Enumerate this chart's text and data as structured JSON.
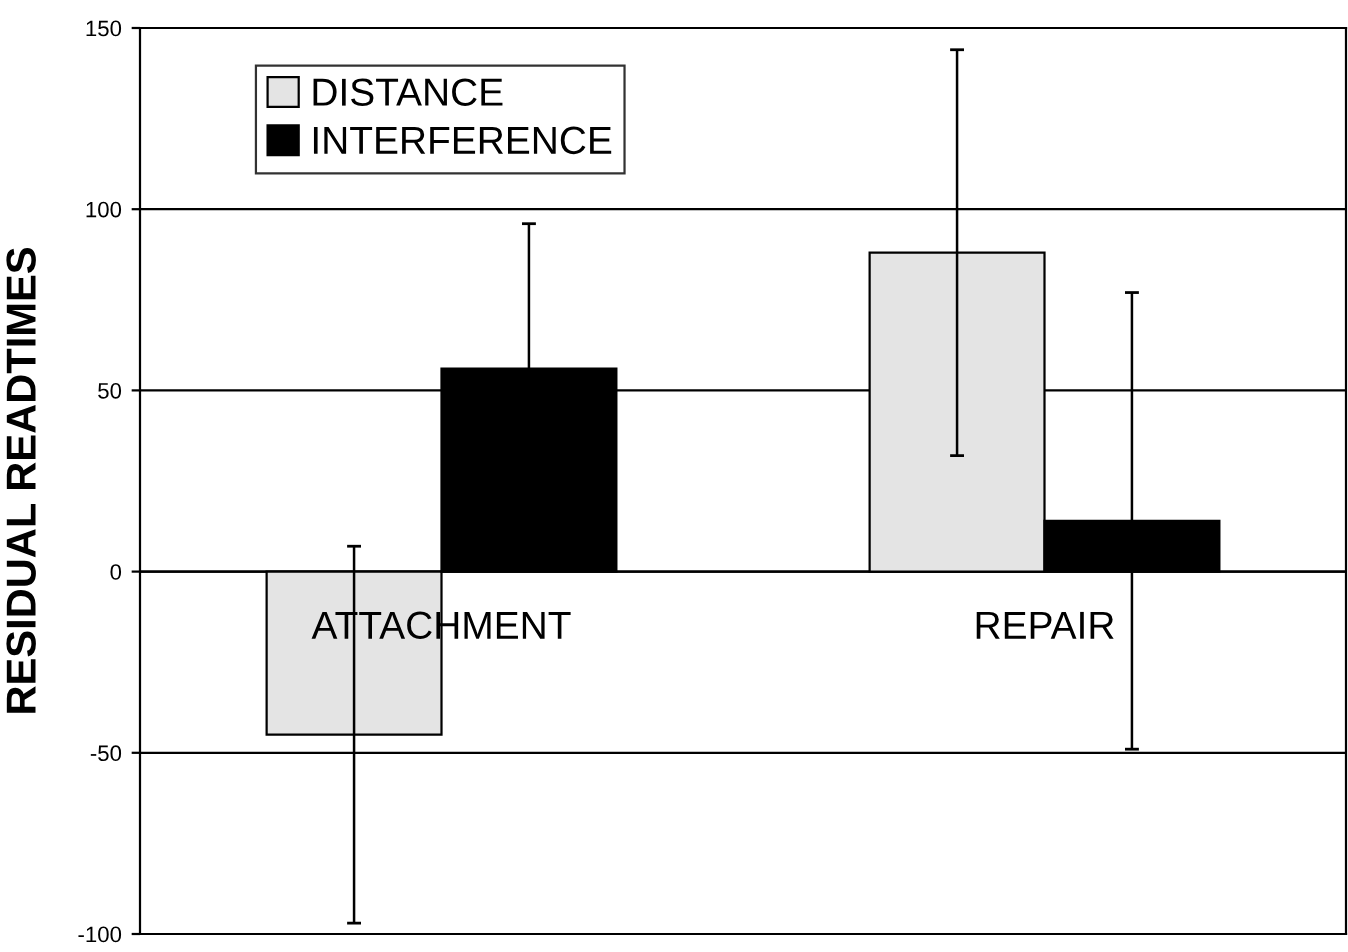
{
  "chart_data": {
    "type": "bar",
    "ylabel": "RESIDUAL READTIMES",
    "categories": [
      "ATTACHMENT",
      "REPAIR"
    ],
    "series": [
      {
        "name": "DISTANCE",
        "color": "#e4e4e4",
        "values": [
          -45,
          88
        ],
        "errors": [
          52,
          56
        ]
      },
      {
        "name": "INTERFERENCE",
        "color": "#000000",
        "values": [
          56,
          14
        ],
        "errors": [
          40,
          63
        ]
      }
    ],
    "ylim": [
      -100,
      150
    ],
    "yticks": [
      -100,
      -50,
      0,
      50,
      100,
      150
    ],
    "grid": "y",
    "legend": "top left"
  }
}
